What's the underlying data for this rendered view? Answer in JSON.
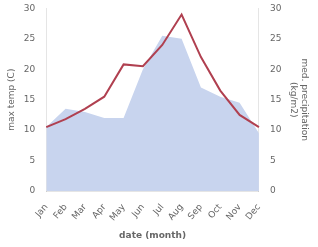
{
  "chart_data": {
    "type": "line",
    "categories": [
      "Jan",
      "Feb",
      "Mar",
      "Apr",
      "May",
      "Jun",
      "Jul",
      "Aug",
      "Sep",
      "Oct",
      "Nov",
      "Dec"
    ],
    "series": [
      {
        "type": "area",
        "axis": "y2",
        "color": "#c8d4ee",
        "values": [
          10.5,
          13.5,
          13.0,
          12.0,
          12.0,
          20.0,
          25.5,
          25.0,
          17.0,
          15.5,
          14.5,
          9.5
        ]
      },
      {
        "type": "line",
        "color": "#b04050",
        "values": [
          10.5,
          11.8,
          13.5,
          15.5,
          20.8,
          20.5,
          24.0,
          29.0,
          22.0,
          16.5,
          12.5,
          10.5
        ]
      }
    ],
    "xlabel": "date (month)",
    "ylabel": "max temp (C)",
    "y2label": "med. precipitation\n(kg/m2)",
    "ylim": [
      0,
      30
    ],
    "yticks": [
      0,
      5,
      10,
      15,
      20,
      25,
      30
    ],
    "y2lim": [
      0,
      30
    ],
    "y2ticks": [
      0,
      5,
      10,
      15,
      20,
      25,
      30
    ],
    "grid": false
  }
}
